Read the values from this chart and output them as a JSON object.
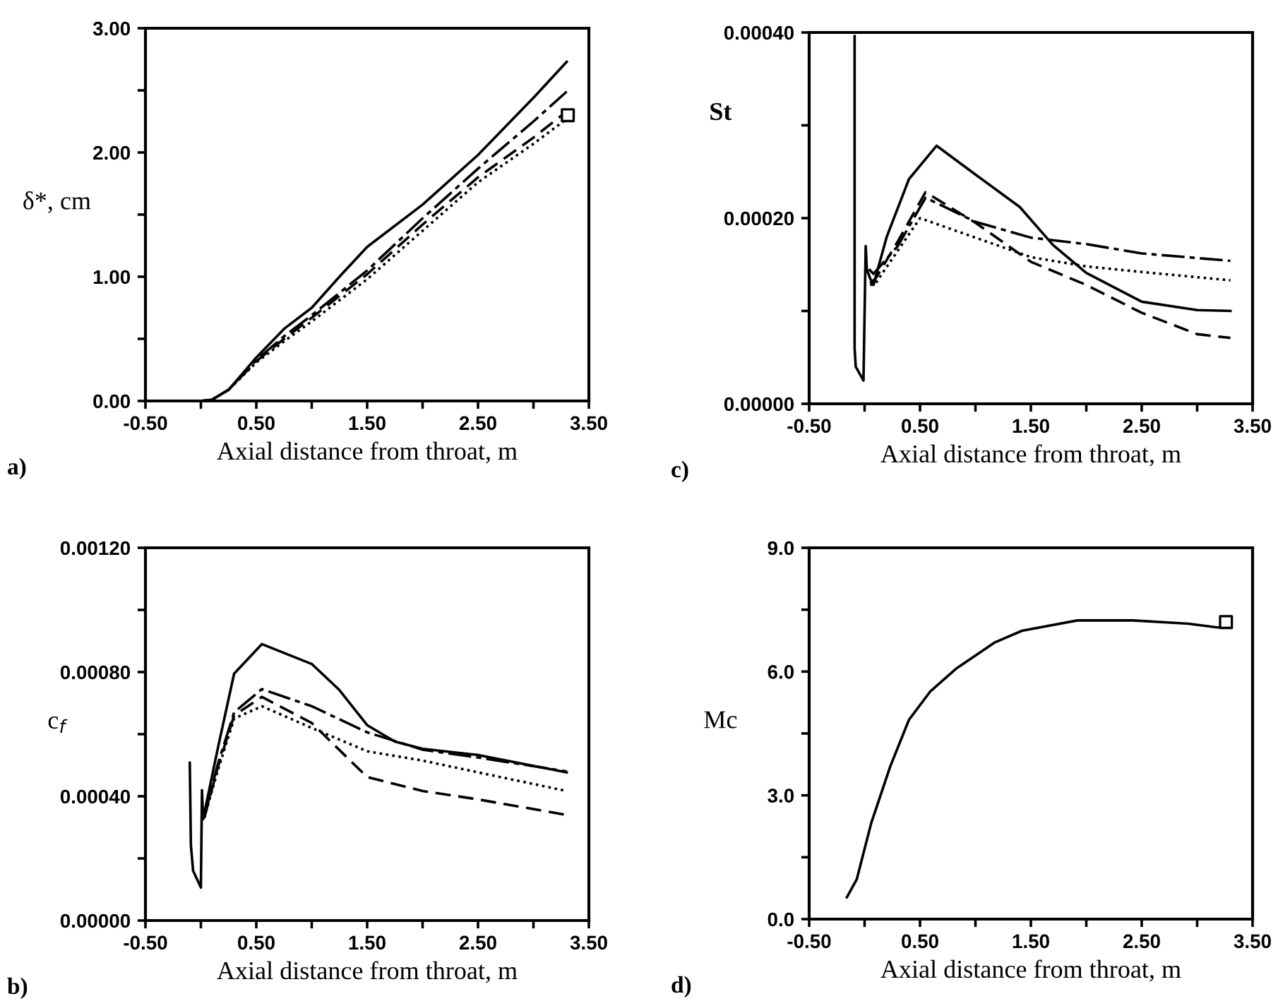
{
  "chart_data": [
    {
      "type": "line",
      "ylabel": "δ*, cm",
      "xlabel": "Axial distance from throat, m",
      "annotations": [
        "a)"
      ],
      "xlim": [
        -0.5,
        3.5
      ],
      "xticks": [
        {
          "value": -0.5,
          "label": "-0.50"
        },
        {
          "value": 0,
          "label": null
        },
        {
          "value": 0.5,
          "label": "0.50"
        },
        {
          "value": 1,
          "label": null
        },
        {
          "value": 1.5,
          "label": "1.50"
        },
        {
          "value": 2,
          "label": null
        },
        {
          "value": 2.5,
          "label": "2.50"
        },
        {
          "value": 3,
          "label": null
        },
        {
          "value": 3.5,
          "label": "3.50"
        }
      ],
      "ylim": [
        0,
        3
      ],
      "yticks": [
        {
          "value": 0,
          "label": "0.00"
        },
        {
          "value": 0.5,
          "label": null
        },
        {
          "value": 1,
          "label": "1.00"
        },
        {
          "value": 1.5,
          "label": null
        },
        {
          "value": 2,
          "label": "2.00"
        },
        {
          "value": 2.5,
          "label": null
        },
        {
          "value": 3,
          "label": "3.00"
        }
      ],
      "series": [
        {
          "color": "#000000",
          "line_style": "solid",
          "x": [
            0.0,
            0.1,
            0.25,
            0.5,
            0.75,
            1.0,
            1.25,
            1.5,
            2.0,
            2.5,
            3.0,
            3.3
          ],
          "values": [
            0.0,
            0.01,
            0.09,
            0.35,
            0.58,
            0.75,
            1.0,
            1.24,
            1.58,
            1.98,
            2.44,
            2.73
          ]
        },
        {
          "color": "#000000",
          "line_style": "dashdot",
          "x": [
            0.0,
            0.1,
            0.25,
            0.5,
            0.75,
            1.0,
            1.5,
            2.0,
            2.5,
            3.0,
            3.3
          ],
          "values": [
            0.0,
            0.01,
            0.09,
            0.33,
            0.52,
            0.69,
            1.05,
            1.47,
            1.87,
            2.25,
            2.49
          ]
        },
        {
          "color": "#000000",
          "line_style": "dashed",
          "x": [
            0.0,
            0.1,
            0.25,
            0.5,
            0.75,
            1.0,
            1.5,
            2.0,
            2.5,
            3.0,
            3.3
          ],
          "values": [
            0.0,
            0.01,
            0.09,
            0.32,
            0.5,
            0.67,
            1.02,
            1.42,
            1.8,
            2.12,
            2.33
          ]
        },
        {
          "color": "#000000",
          "line_style": "dotted",
          "x": [
            0.0,
            0.1,
            0.25,
            0.5,
            0.75,
            1.0,
            1.5,
            2.0,
            2.5,
            3.0,
            3.3
          ],
          "values": [
            0.0,
            0.01,
            0.09,
            0.31,
            0.48,
            0.64,
            0.98,
            1.37,
            1.76,
            2.07,
            2.27
          ]
        },
        {
          "type": "scatter",
          "marker": "square",
          "color": "#000000",
          "x": [
            3.31
          ],
          "values": [
            2.3
          ]
        }
      ]
    },
    {
      "type": "line",
      "ylabel": "St",
      "xlabel": "Axial distance from throat, m",
      "annotations": [
        "c)"
      ],
      "xlim": [
        -0.5,
        3.5
      ],
      "xticks": [
        {
          "value": -0.5,
          "label": "-0.50"
        },
        {
          "value": 0,
          "label": null
        },
        {
          "value": 0.5,
          "label": "0.50"
        },
        {
          "value": 1,
          "label": null
        },
        {
          "value": 1.5,
          "label": "1.50"
        },
        {
          "value": 2,
          "label": null
        },
        {
          "value": 2.5,
          "label": "2.50"
        },
        {
          "value": 3,
          "label": null
        },
        {
          "value": 3.5,
          "label": "3.50"
        }
      ],
      "ylim": [
        0,
        0.0004
      ],
      "yticks": [
        {
          "value": 0,
          "label": "0.00000"
        },
        {
          "value": 0.0001,
          "label": null
        },
        {
          "value": 0.0002,
          "label": "0.00020"
        },
        {
          "value": 0.0003,
          "label": null
        },
        {
          "value": 0.0004,
          "label": "0.00040"
        }
      ],
      "series": [
        {
          "color": "#000000",
          "line_style": "solid",
          "x": [
            -0.09,
            -0.09,
            -0.08,
            -0.01,
            0.01,
            0.02,
            0.05,
            0.08,
            0.2,
            0.4,
            0.65,
            1.0,
            1.4,
            1.7,
            2.0,
            2.5,
            3.0,
            3.3
          ],
          "values": [
            0.000396,
            6e-05,
            4e-05,
            2.5e-05,
            0.00017,
            0.000145,
            0.000135,
            0.000128,
            0.00018,
            0.000242,
            0.000278,
            0.000247,
            0.000212,
            0.000171,
            0.000141,
            0.00011,
            0.000101,
            0.0001
          ]
        },
        {
          "color": "#000000",
          "line_style": "dashdot",
          "x": [
            0.04,
            0.08,
            0.3,
            0.55,
            1.0,
            1.5,
            2.0,
            2.5,
            3.3
          ],
          "values": [
            0.000145,
            0.00014,
            0.00017,
            0.000222,
            0.000196,
            0.000179,
            0.000172,
            0.000162,
            0.000154
          ]
        },
        {
          "color": "#000000",
          "line_style": "dashed",
          "x": [
            0.05,
            0.1,
            0.3,
            0.55,
            1.0,
            1.5,
            2.0,
            2.5,
            3.0,
            3.3
          ],
          "values": [
            0.00013,
            0.000135,
            0.000175,
            0.000228,
            0.000195,
            0.000153,
            0.000128,
            9.8e-05,
            7.5e-05,
            7.1e-05
          ]
        },
        {
          "color": "#000000",
          "line_style": "dotted",
          "x": [
            0.05,
            0.1,
            0.3,
            0.5,
            1.0,
            1.5,
            2.0,
            2.5,
            3.3
          ],
          "values": [
            0.000128,
            0.00013,
            0.000165,
            0.0002,
            0.000179,
            0.000158,
            0.000148,
            0.000142,
            0.000133
          ]
        }
      ]
    },
    {
      "type": "line",
      "ylabel": "c$_{f}$",
      "xlabel": "Axial distance from throat, m",
      "annotations": [
        "b)"
      ],
      "xlim": [
        -0.5,
        3.5
      ],
      "xticks": [
        {
          "value": -0.5,
          "label": "-0.50"
        },
        {
          "value": 0,
          "label": null
        },
        {
          "value": 0.5,
          "label": "0.50"
        },
        {
          "value": 1,
          "label": null
        },
        {
          "value": 1.5,
          "label": "1.50"
        },
        {
          "value": 2,
          "label": null
        },
        {
          "value": 2.5,
          "label": "2.50"
        },
        {
          "value": 3,
          "label": null
        },
        {
          "value": 3.5,
          "label": "3.50"
        }
      ],
      "ylim": [
        0,
        0.0012
      ],
      "yticks": [
        {
          "value": 0,
          "label": "0.00000"
        },
        {
          "value": 0.0002,
          "label": null
        },
        {
          "value": 0.0004,
          "label": "0.00040"
        },
        {
          "value": 0.0006,
          "label": null
        },
        {
          "value": 0.0008,
          "label": "0.00080"
        },
        {
          "value": 0.001,
          "label": null
        },
        {
          "value": 0.0012,
          "label": "0.00120"
        }
      ],
      "series": [
        {
          "color": "#000000",
          "line_style": "solid",
          "x": [
            -0.1,
            -0.09,
            -0.07,
            0.0,
            0.01,
            0.02,
            0.15,
            0.3,
            0.55,
            1.0,
            1.25,
            1.5,
            1.75,
            2.0,
            2.5,
            3.3
          ],
          "values": [
            0.000508,
            0.000242,
            0.00016,
            0.000106,
            0.00042,
            0.000326,
            0.00055,
            0.000795,
            0.00089,
            0.000826,
            0.000742,
            0.000629,
            0.000576,
            0.000553,
            0.000533,
            0.000477
          ]
        },
        {
          "color": "#000000",
          "line_style": "dashdot",
          "x": [
            0.03,
            0.15,
            0.3,
            0.55,
            1.0,
            1.5,
            2.0,
            2.5,
            3.3
          ],
          "values": [
            0.00033,
            0.0005,
            0.00067,
            0.000745,
            0.00069,
            0.000606,
            0.00055,
            0.000525,
            0.00048
          ]
        },
        {
          "color": "#000000",
          "line_style": "dashed",
          "x": [
            0.03,
            0.15,
            0.3,
            0.55,
            1.0,
            1.5,
            2.0,
            2.5,
            3.3
          ],
          "values": [
            0.00033,
            0.00049,
            0.00066,
            0.00072,
            0.000636,
            0.000462,
            0.000417,
            0.00039,
            0.00034
          ]
        },
        {
          "color": "#000000",
          "line_style": "dotted",
          "x": [
            0.03,
            0.15,
            0.3,
            0.55,
            1.0,
            1.5,
            2.0,
            2.5,
            3.3
          ],
          "values": [
            0.00033,
            0.00048,
            0.00065,
            0.00069,
            0.00062,
            0.000545,
            0.000515,
            0.000477,
            0.000417
          ]
        }
      ]
    },
    {
      "type": "line",
      "ylabel": "Mc",
      "xlabel": "Axial distance from throat, m",
      "annotations": [
        "d)"
      ],
      "xlim": [
        -0.5,
        3.5
      ],
      "xticks": [
        {
          "value": -0.5,
          "label": "-0.50"
        },
        {
          "value": 0,
          "label": null
        },
        {
          "value": 0.5,
          "label": "0.50"
        },
        {
          "value": 1,
          "label": null
        },
        {
          "value": 1.5,
          "label": "1.50"
        },
        {
          "value": 2,
          "label": null
        },
        {
          "value": 2.5,
          "label": "2.50"
        },
        {
          "value": 3,
          "label": null
        },
        {
          "value": 3.5,
          "label": "3.50"
        }
      ],
      "ylim": [
        0,
        9
      ],
      "yticks": [
        {
          "value": 0,
          "label": "0.0"
        },
        {
          "value": 1.5,
          "label": null
        },
        {
          "value": 3,
          "label": "3.0"
        },
        {
          "value": 4.5,
          "label": null
        },
        {
          "value": 6,
          "label": "6.0"
        },
        {
          "value": 7.5,
          "label": null
        },
        {
          "value": 9,
          "label": "9.0"
        }
      ],
      "series": [
        {
          "color": "#000000",
          "line_style": "solid",
          "x": [
            -0.16,
            -0.07,
            0.06,
            0.23,
            0.4,
            0.59,
            0.83,
            1.17,
            1.42,
            1.92,
            2.42,
            2.92,
            3.18,
            3.23
          ],
          "values": [
            0.53,
            0.97,
            2.33,
            3.69,
            4.83,
            5.51,
            6.08,
            6.7,
            6.99,
            7.24,
            7.24,
            7.16,
            7.07,
            7.07
          ]
        },
        {
          "type": "scatter",
          "marker": "square",
          "color": "#000000",
          "x": [
            3.26
          ],
          "values": [
            7.2
          ]
        }
      ]
    }
  ]
}
